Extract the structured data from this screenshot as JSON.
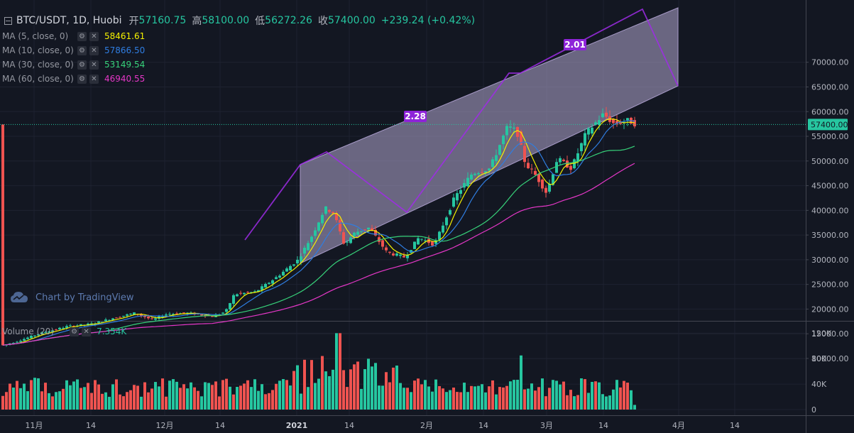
{
  "header": {
    "symbol": "BTC/USDT, 1D, Huobi",
    "open_label": "开",
    "open": "57160.75",
    "high_label": "高",
    "high": "58100.00",
    "low_label": "低",
    "low": "56272.26",
    "close_label": "收",
    "close": "57400.00",
    "change": "+239.24 (+0.42%)"
  },
  "indicators": [
    {
      "label": "MA (5, close, 0)",
      "value": "58461.61",
      "color": "#f5f100"
    },
    {
      "label": "MA (10, close, 0)",
      "value": "57866.50",
      "color": "#2f7de1"
    },
    {
      "label": "MA (30, close, 0)",
      "value": "53149.54",
      "color": "#37d27a"
    },
    {
      "label": "MA (60, close, 0)",
      "value": "46940.55",
      "color": "#e637c8"
    }
  ],
  "volume_indicator": {
    "label": "Volume (20)",
    "value": "7.354K"
  },
  "watermark": "Chart by TradingView",
  "colors": {
    "up": "#26c6a0",
    "down": "#ef5350",
    "channel": "#9c27b0",
    "background": "#131722"
  },
  "chart_data": {
    "type": "candlestick",
    "price_axis": {
      "min": 8000,
      "max": 71000,
      "ticks": [
        "70000.00",
        "65000.00",
        "60000.00",
        "55000.00",
        "50000.00",
        "45000.00",
        "40000.00",
        "35000.00",
        "30000.00",
        "25000.00",
        "20000.00",
        "15000.00",
        "10000.00"
      ]
    },
    "last_price": {
      "label": "57400.00",
      "value": 57400
    },
    "volume_axis": {
      "min": 0,
      "max": 130000,
      "ticks": [
        "120K",
        "80K",
        "40K",
        "0"
      ]
    },
    "x_axis": {
      "ticks": [
        "11月",
        "14",
        "12月",
        "14",
        "2021",
        "14",
        "2月",
        "14",
        "3月",
        "14",
        "4月",
        "14"
      ]
    },
    "annotations": [
      {
        "text": "2.28",
        "ref": "fib-ratio"
      },
      {
        "text": "2.01",
        "ref": "fib-ratio"
      }
    ]
  }
}
